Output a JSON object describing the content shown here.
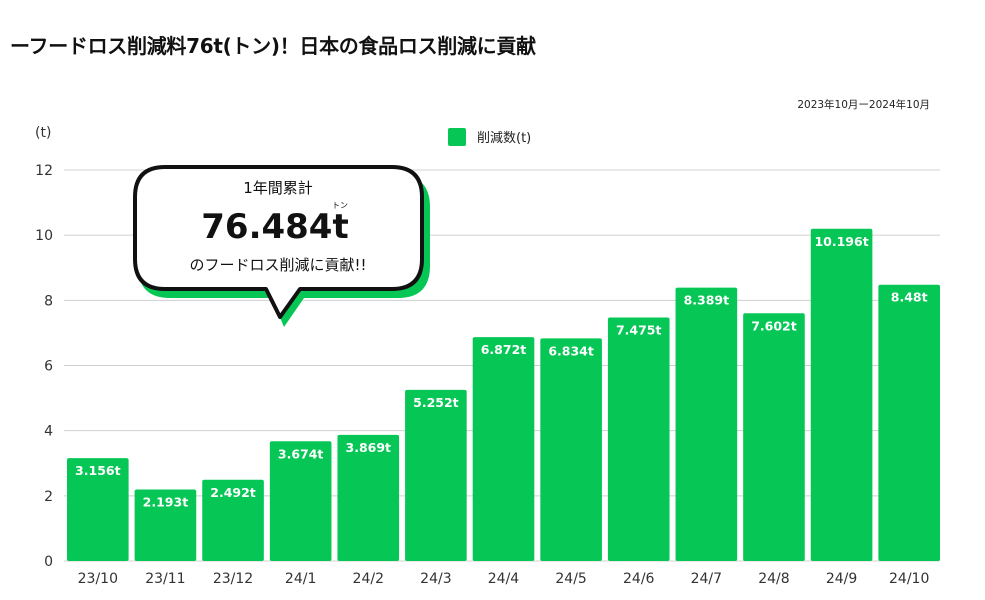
{
  "page": {
    "title": "ーフードロス削減料76t(トン)！日本の食品ロス削減に貢献",
    "period": "2023年10月ー2024年10月"
  },
  "callout": {
    "line1": "1年間累計",
    "total": "76.484t",
    "ruby": "トン",
    "line3": "のフードロス削減に貢献!!"
  },
  "colors": {
    "bar": "#06c755",
    "grid": "#d0d0d0",
    "bubble_shadow": "#06c755"
  },
  "chart_data": {
    "type": "bar",
    "ylabel": "(t)",
    "ylim": [
      0,
      12
    ],
    "yticks": [
      0,
      2,
      4,
      6,
      8,
      10,
      12
    ],
    "grid": true,
    "legend_position": "top-center",
    "categories": [
      "23/10",
      "23/11",
      "23/12",
      "24/1",
      "24/2",
      "24/3",
      "24/4",
      "24/5",
      "24/6",
      "24/7",
      "24/8",
      "24/9",
      "24/10"
    ],
    "series": [
      {
        "name": "削減数(t)",
        "values": [
          3.156,
          2.193,
          2.492,
          3.674,
          3.869,
          5.252,
          6.872,
          6.834,
          7.475,
          8.389,
          7.602,
          10.196,
          8.48
        ],
        "labels": [
          "3.156t",
          "2.193t",
          "2.492t",
          "3.674t",
          "3.869t",
          "5.252t",
          "6.872t",
          "6.834t",
          "7.475t",
          "8.389t",
          "7.602t",
          "10.196t",
          "8.48t"
        ]
      }
    ]
  }
}
